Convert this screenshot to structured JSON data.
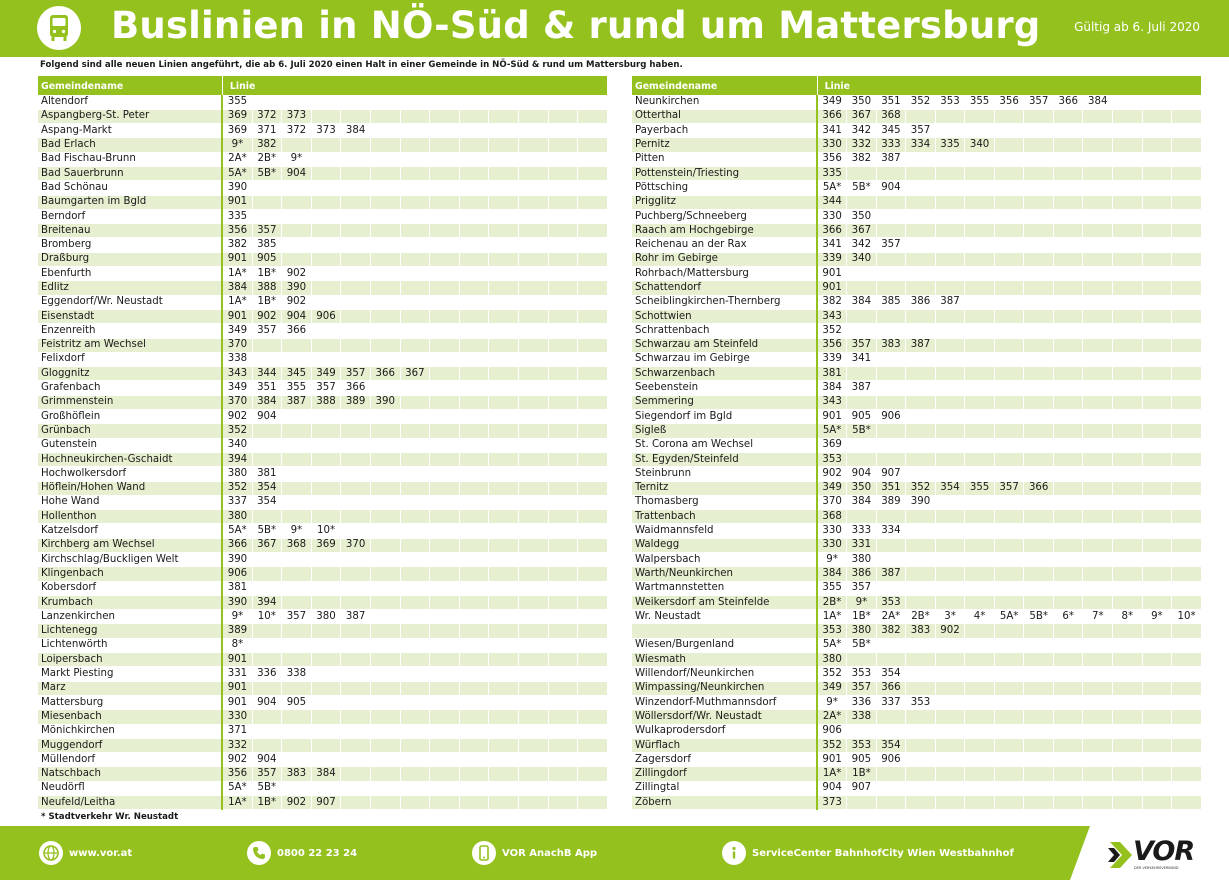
{
  "header": {
    "icon": "bus-icon",
    "title": "Buslinien in NÖ-Süd & rund um Mattersburg",
    "valid_from": "Gültig ab 6. Juli 2020"
  },
  "intro": "Folgend sind alle neuen Linien angeführt, die ab 6. Juli 2020 einen Halt in einer Gemeinde in NÖ-Süd & rund um Mattersburg haben.",
  "footnote": "* Stadtverkehr Wr. Neustadt",
  "table_headers": {
    "name": "Gemeindename",
    "line": "Linie"
  },
  "left_rows": [
    {
      "name": "Altendorf",
      "lines": [
        "355"
      ]
    },
    {
      "name": "Aspangberg-St. Peter",
      "lines": [
        "369",
        "372",
        "373"
      ]
    },
    {
      "name": "Aspang-Markt",
      "lines": [
        "369",
        "371",
        "372",
        "373",
        "384"
      ]
    },
    {
      "name": "Bad Erlach",
      "lines": [
        "9*",
        "382"
      ]
    },
    {
      "name": "Bad Fischau-Brunn",
      "lines": [
        "2A*",
        "2B*",
        "9*"
      ]
    },
    {
      "name": "Bad Sauerbrunn",
      "lines": [
        "5A*",
        "5B*",
        "904"
      ]
    },
    {
      "name": "Bad Schönau",
      "lines": [
        "390"
      ]
    },
    {
      "name": "Baumgarten im Bgld",
      "lines": [
        "901"
      ]
    },
    {
      "name": "Berndorf",
      "lines": [
        "335"
      ]
    },
    {
      "name": "Breitenau",
      "lines": [
        "356",
        "357"
      ]
    },
    {
      "name": "Bromberg",
      "lines": [
        "382",
        "385"
      ]
    },
    {
      "name": "Draßburg",
      "lines": [
        "901",
        "905"
      ]
    },
    {
      "name": "Ebenfurth",
      "lines": [
        "1A*",
        "1B*",
        "902"
      ]
    },
    {
      "name": "Edlitz",
      "lines": [
        "384",
        "388",
        "390"
      ]
    },
    {
      "name": "Eggendorf/Wr. Neustadt",
      "lines": [
        "1A*",
        "1B*",
        "902"
      ]
    },
    {
      "name": "Eisenstadt",
      "lines": [
        "901",
        "902",
        "904",
        "906"
      ]
    },
    {
      "name": "Enzenreith",
      "lines": [
        "349",
        "357",
        "366"
      ]
    },
    {
      "name": "Feistritz am Wechsel",
      "lines": [
        "370"
      ]
    },
    {
      "name": "Felixdorf",
      "lines": [
        "338"
      ]
    },
    {
      "name": "Gloggnitz",
      "lines": [
        "343",
        "344",
        "345",
        "349",
        "357",
        "366",
        "367"
      ]
    },
    {
      "name": "Grafenbach",
      "lines": [
        "349",
        "351",
        "355",
        "357",
        "366"
      ]
    },
    {
      "name": "Grimmenstein",
      "lines": [
        "370",
        "384",
        "387",
        "388",
        "389",
        "390"
      ]
    },
    {
      "name": "Großhöflein",
      "lines": [
        "902",
        "904"
      ]
    },
    {
      "name": "Grünbach",
      "lines": [
        "352"
      ]
    },
    {
      "name": "Gutenstein",
      "lines": [
        "340"
      ]
    },
    {
      "name": "Hochneukirchen-Gschaidt",
      "lines": [
        "394"
      ]
    },
    {
      "name": "Hochwolkersdorf",
      "lines": [
        "380",
        "381"
      ]
    },
    {
      "name": "Höflein/Hohen Wand",
      "lines": [
        "352",
        "354"
      ]
    },
    {
      "name": "Hohe Wand",
      "lines": [
        "337",
        "354"
      ]
    },
    {
      "name": "Hollenthon",
      "lines": [
        "380"
      ]
    },
    {
      "name": "Katzelsdorf",
      "lines": [
        "5A*",
        "5B*",
        "9*",
        "10*"
      ]
    },
    {
      "name": "Kirchberg am Wechsel",
      "lines": [
        "366",
        "367",
        "368",
        "369",
        "370"
      ]
    },
    {
      "name": "Kirchschlag/Buckligen Welt",
      "lines": [
        "390"
      ]
    },
    {
      "name": "Klingenbach",
      "lines": [
        "906"
      ]
    },
    {
      "name": "Kobersdorf",
      "lines": [
        "381"
      ]
    },
    {
      "name": "Krumbach",
      "lines": [
        "390",
        "394"
      ]
    },
    {
      "name": "Lanzenkirchen",
      "lines": [
        "9*",
        "10*",
        "357",
        "380",
        "387"
      ]
    },
    {
      "name": "Lichtenegg",
      "lines": [
        "389"
      ]
    },
    {
      "name": "Lichtenwörth",
      "lines": [
        "8*"
      ]
    },
    {
      "name": "Loipersbach",
      "lines": [
        "901"
      ]
    },
    {
      "name": "Markt Piesting",
      "lines": [
        "331",
        "336",
        "338"
      ]
    },
    {
      "name": "Marz",
      "lines": [
        "901"
      ]
    },
    {
      "name": "Mattersburg",
      "lines": [
        "901",
        "904",
        "905"
      ]
    },
    {
      "name": "Miesenbach",
      "lines": [
        "330"
      ]
    },
    {
      "name": "Mönichkirchen",
      "lines": [
        "371"
      ]
    },
    {
      "name": "Muggendorf",
      "lines": [
        "332"
      ]
    },
    {
      "name": "Müllendorf",
      "lines": [
        "902",
        "904"
      ]
    },
    {
      "name": "Natschbach",
      "lines": [
        "356",
        "357",
        "383",
        "384"
      ]
    },
    {
      "name": "Neudörfl",
      "lines": [
        "5A*",
        "5B*"
      ]
    },
    {
      "name": "Neufeld/Leitha",
      "lines": [
        "1A*",
        "1B*",
        "902",
        "907"
      ]
    }
  ],
  "right_rows": [
    {
      "name": "Neunkirchen",
      "lines": [
        "349",
        "350",
        "351",
        "352",
        "353",
        "355",
        "356",
        "357",
        "366",
        "384"
      ]
    },
    {
      "name": "Otterthal",
      "lines": [
        "366",
        "367",
        "368"
      ]
    },
    {
      "name": "Payerbach",
      "lines": [
        "341",
        "342",
        "345",
        "357"
      ]
    },
    {
      "name": "Pernitz",
      "lines": [
        "330",
        "332",
        "333",
        "334",
        "335",
        "340"
      ]
    },
    {
      "name": "Pitten",
      "lines": [
        "356",
        "382",
        "387"
      ]
    },
    {
      "name": "Pottenstein/Triesting",
      "lines": [
        "335"
      ]
    },
    {
      "name": "Pöttsching",
      "lines": [
        "5A*",
        "5B*",
        "904"
      ]
    },
    {
      "name": "Prigglitz",
      "lines": [
        "344"
      ]
    },
    {
      "name": "Puchberg/Schneeberg",
      "lines": [
        "330",
        "350"
      ]
    },
    {
      "name": "Raach am Hochgebirge",
      "lines": [
        "366",
        "367"
      ]
    },
    {
      "name": "Reichenau an der Rax",
      "lines": [
        "341",
        "342",
        "357"
      ]
    },
    {
      "name": "Rohr im Gebirge",
      "lines": [
        "339",
        "340"
      ]
    },
    {
      "name": "Rohrbach/Mattersburg",
      "lines": [
        "901"
      ]
    },
    {
      "name": "Schattendorf",
      "lines": [
        "901"
      ]
    },
    {
      "name": "Scheiblingkirchen-Thernberg",
      "lines": [
        "382",
        "384",
        "385",
        "386",
        "387"
      ]
    },
    {
      "name": "Schottwien",
      "lines": [
        "343"
      ]
    },
    {
      "name": "Schrattenbach",
      "lines": [
        "352"
      ]
    },
    {
      "name": "Schwarzau am Steinfeld",
      "lines": [
        "356",
        "357",
        "383",
        "387"
      ]
    },
    {
      "name": "Schwarzau im Gebirge",
      "lines": [
        "339",
        "341"
      ]
    },
    {
      "name": "Schwarzenbach",
      "lines": [
        "381"
      ]
    },
    {
      "name": "Seebenstein",
      "lines": [
        "384",
        "387"
      ]
    },
    {
      "name": "Semmering",
      "lines": [
        "343"
      ]
    },
    {
      "name": "Siegendorf im Bgld",
      "lines": [
        "901",
        "905",
        "906"
      ]
    },
    {
      "name": "Sigleß",
      "lines": [
        "5A*",
        "5B*"
      ]
    },
    {
      "name": "St. Corona am Wechsel",
      "lines": [
        "369"
      ]
    },
    {
      "name": "St. Egyden/Steinfeld",
      "lines": [
        "353"
      ]
    },
    {
      "name": "Steinbrunn",
      "lines": [
        "902",
        "904",
        "907"
      ]
    },
    {
      "name": "Ternitz",
      "lines": [
        "349",
        "350",
        "351",
        "352",
        "354",
        "355",
        "357",
        "366"
      ]
    },
    {
      "name": "Thomasberg",
      "lines": [
        "370",
        "384",
        "389",
        "390"
      ]
    },
    {
      "name": "Trattenbach",
      "lines": [
        "368"
      ]
    },
    {
      "name": "Waidmannsfeld",
      "lines": [
        "330",
        "333",
        "334"
      ]
    },
    {
      "name": "Waldegg",
      "lines": [
        "330",
        "331"
      ]
    },
    {
      "name": "Walpersbach",
      "lines": [
        "9*",
        "380"
      ]
    },
    {
      "name": "Warth/Neunkirchen",
      "lines": [
        "384",
        "386",
        "387"
      ]
    },
    {
      "name": "Wartmannstetten",
      "lines": [
        "355",
        "357"
      ]
    },
    {
      "name": "Weikersdorf am Steinfelde",
      "lines": [
        "2B*",
        "9*",
        "353"
      ]
    },
    {
      "name": "Wr. Neustadt",
      "lines": [
        "1A*",
        "1B*",
        "2A*",
        "2B*",
        "3*",
        "4*",
        "5A*",
        "5B*",
        "6*",
        "7*",
        "8*",
        "9*",
        "10*"
      ]
    },
    {
      "name": "",
      "lines": [
        "353",
        "380",
        "382",
        "383",
        "902"
      ]
    },
    {
      "name": "Wiesen/Burgenland",
      "lines": [
        "5A*",
        "5B*"
      ]
    },
    {
      "name": "Wiesmath",
      "lines": [
        "380"
      ]
    },
    {
      "name": "Willendorf/Neunkirchen",
      "lines": [
        "352",
        "353",
        "354"
      ]
    },
    {
      "name": "Wimpassing/Neunkirchen",
      "lines": [
        "349",
        "357",
        "366"
      ]
    },
    {
      "name": "Winzendorf-Muthmannsdorf",
      "lines": [
        "9*",
        "336",
        "337",
        "353"
      ]
    },
    {
      "name": "Wöllersdorf/Wr. Neustadt",
      "lines": [
        "2A*",
        "338"
      ]
    },
    {
      "name": "Wulkaprodersdorf",
      "lines": [
        "906"
      ]
    },
    {
      "name": "Würflach",
      "lines": [
        "352",
        "353",
        "354"
      ]
    },
    {
      "name": "Zagersdorf",
      "lines": [
        "901",
        "905",
        "906"
      ]
    },
    {
      "name": "Zillingdorf",
      "lines": [
        "1A*",
        "1B*"
      ]
    },
    {
      "name": "Zillingtal",
      "lines": [
        "904",
        "907"
      ]
    },
    {
      "name": "Zöbern",
      "lines": [
        "373"
      ]
    }
  ],
  "footer": {
    "web": {
      "icon": "globe-icon",
      "label": "www.vor.at"
    },
    "phone": {
      "icon": "phone-icon",
      "label": "0800 22 23 24"
    },
    "app": {
      "icon": "smartphone-icon",
      "label": "VOR AnachB App"
    },
    "service": {
      "icon": "info-icon",
      "label": "ServiceCenter BahnhofCity Wien Westbahnhof"
    },
    "logo": {
      "text": "VOR",
      "subtitle": "DER VERKEHRSVERBUND"
    }
  },
  "colors": {
    "accent": "#95c11f",
    "row_alt": "#e6efd0"
  }
}
